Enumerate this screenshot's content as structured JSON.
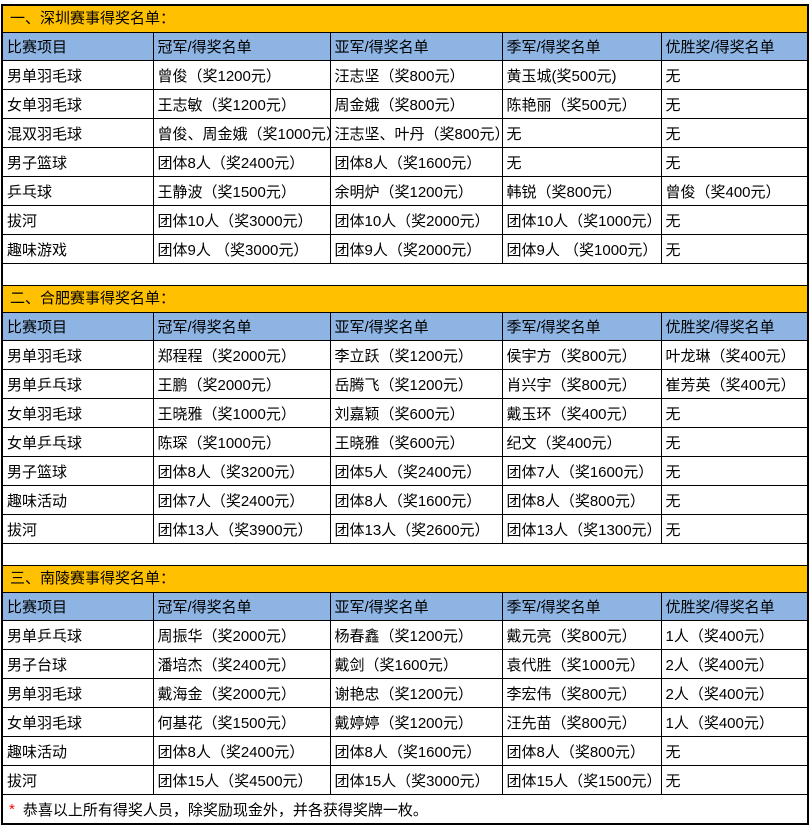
{
  "sheet": {
    "columns": [
      "比赛项目",
      "冠军/得奖名单",
      "亚军/得奖名单",
      "季军/得奖名单",
      "优胜奖/得奖名单"
    ],
    "sections": [
      {
        "title": "一、深圳赛事得奖名单：",
        "rows": [
          [
            "男单羽毛球",
            "曾俊（奖1200元）",
            "汪志坚（奖800元）",
            "黄玉城(奖500元)",
            "无"
          ],
          [
            "女单羽毛球",
            "王志敏（奖1200元）",
            "周金娥（奖800元）",
            "陈艳丽（奖500元）",
            "无"
          ],
          [
            "混双羽毛球",
            "曾俊、周金娥（奖1000元）",
            "汪志坚、叶丹（奖800元）",
            "无",
            "无"
          ],
          [
            "男子篮球",
            "团体8人（奖2400元）",
            "团体8人（奖1600元）",
            "无",
            "无"
          ],
          [
            "乒乓球",
            "王静波（奖1500元）",
            "余明炉（奖1200元）",
            "韩锐（奖800元）",
            "曾俊（奖400元）"
          ],
          [
            "拔河",
            "团体10人（奖3000元）",
            "团体10人（奖2000元）",
            "团体10人（奖1000元）",
            "无"
          ],
          [
            "趣味游戏",
            "团体9人 （奖3000元）",
            "团体9人（奖2000元）",
            "团体9人 （奖1000元）",
            "无"
          ]
        ]
      },
      {
        "title": "二、合肥赛事得奖名单：",
        "rows": [
          [
            "男单羽毛球",
            "郑程程（奖2000元）",
            "李立跃（奖1200元）",
            "侯宇方（奖800元）",
            "叶龙琳（奖400元）"
          ],
          [
            "男单乒乓球",
            "王鹏（奖2000元）",
            "岳腾飞（奖1200元）",
            "肖兴宇（奖800元）",
            "崔芳英（奖400元）"
          ],
          [
            "女单羽毛球",
            "王晓雅（奖1000元）",
            "刘嘉颖（奖600元）",
            "戴玉环（奖400元）",
            "无"
          ],
          [
            "女单乒乓球",
            "陈琛（奖1000元）",
            "王晓雅（奖600元）",
            "纪文（奖400元）",
            "无"
          ],
          [
            "男子篮球",
            "团体8人（奖3200元）",
            "团体5人（奖2400元）",
            "团体7人（奖1600元）",
            "无"
          ],
          [
            "趣味活动",
            "团体7人（奖2400元）",
            "团体8人（奖1600元）",
            "团体8人（奖800元）",
            "无"
          ],
          [
            "拔河",
            "团体13人（奖3900元）",
            "团体13人（奖2600元）",
            "团体13人（奖1300元）",
            "无"
          ]
        ]
      },
      {
        "title": "三、南陵赛事得奖名单：",
        "rows": [
          [
            "男单乒乓球",
            "周振华（奖2000元）",
            "杨春鑫（奖1200元）",
            "戴元亮（奖800元）",
            "1人（奖400元）"
          ],
          [
            "男子台球",
            "潘培杰（奖2400元）",
            "戴剑（奖1600元）",
            "袁代胜（奖1000元）",
            "2人（奖400元）"
          ],
          [
            "男单羽毛球",
            "戴海金（奖2000元）",
            "谢艳忠（奖1200元）",
            "李宏伟（奖800元）",
            "2人（奖400元）"
          ],
          [
            "女单羽毛球",
            "何基花（奖1500元）",
            "戴婷婷（奖1200元）",
            "汪先苗（奖800元）",
            "1人（奖400元）"
          ],
          [
            "趣味活动",
            "团体8人（奖2400元）",
            "团体8人（奖1600元）",
            "团体8人（奖800元）",
            "无"
          ],
          [
            "拔河",
            "团体15人（奖4500元）",
            "团体15人（奖3000元）",
            "团体15人（奖1500元）",
            "无"
          ]
        ]
      }
    ],
    "footer": {
      "marker": "*",
      "text": "恭喜以上所有得奖人员，除奖励现金外，并各获得奖牌一枚。"
    },
    "colors": {
      "section_title_bg": "#FFC000",
      "header_row_bg": "#8DB4E2",
      "grid_border": "#000000",
      "footer_marker": "#FF0000",
      "cell_bg": "#FFFFFF"
    }
  }
}
